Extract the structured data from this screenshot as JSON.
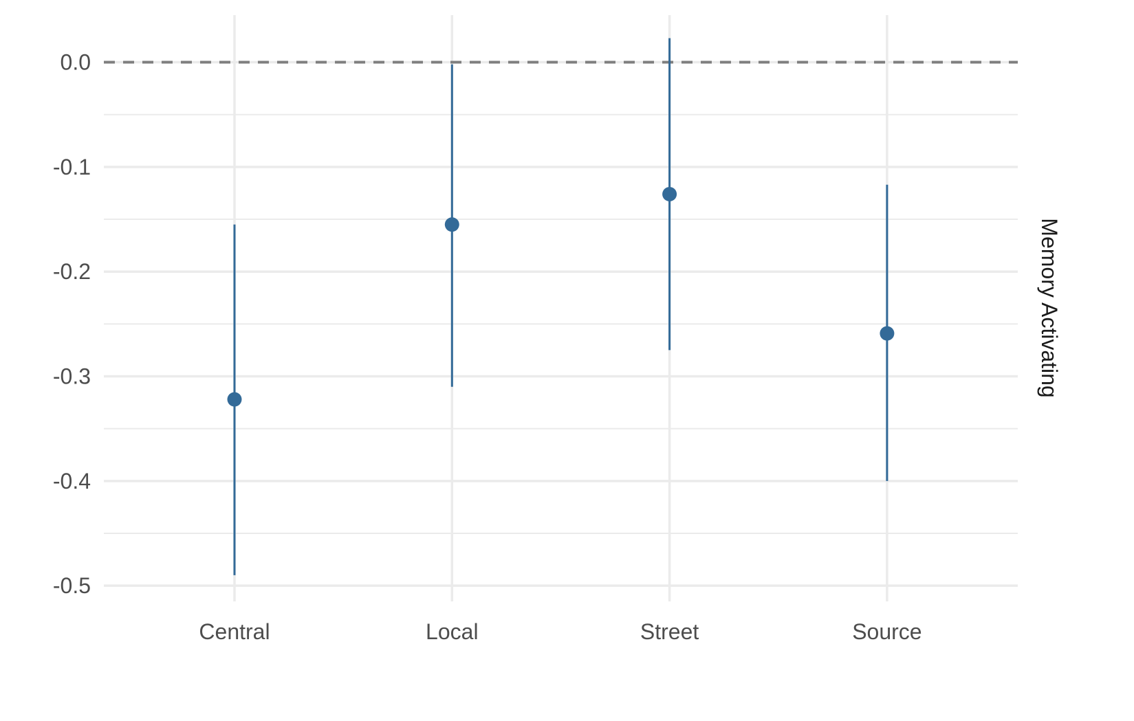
{
  "chart_data": {
    "type": "scatter",
    "subtype": "point-range",
    "categories": [
      "Central",
      "Local",
      "Street",
      "Source"
    ],
    "series": [
      {
        "estimates": [
          -0.322,
          -0.155,
          -0.126,
          -0.259
        ],
        "lower": [
          -0.49,
          -0.31,
          -0.275,
          -0.4
        ],
        "upper": [
          -0.155,
          -0.002,
          0.023,
          -0.117
        ]
      }
    ],
    "facet_label": "Memory Activating",
    "title": "",
    "xlabel": "",
    "ylabel": "",
    "ylim": [
      -0.515,
      0.045
    ],
    "yticks": [
      0.0,
      -0.1,
      -0.2,
      -0.3,
      -0.4,
      -0.5
    ],
    "ytick_labels": [
      "0.0",
      "-0.1",
      "-0.2",
      "-0.3",
      "-0.4",
      "-0.5"
    ],
    "reference_line": 0.0,
    "grid": true,
    "legend": "none",
    "colors": {
      "point": "#336a98",
      "grid": "#ebebeb",
      "reference": "#7f7f7f"
    }
  }
}
